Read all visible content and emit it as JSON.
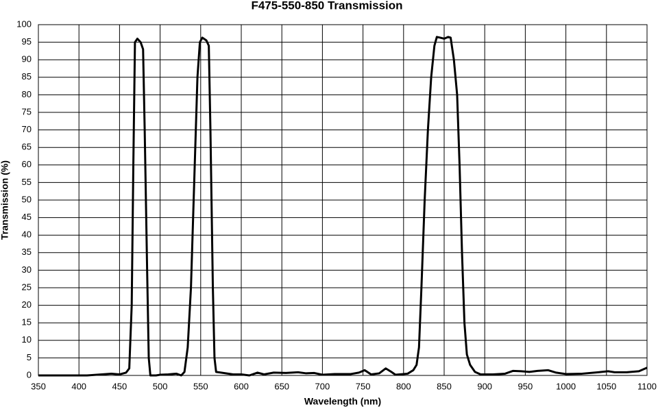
{
  "chart_data": {
    "type": "line",
    "title": "F475-550-850 Transmission",
    "x_label": "Wavelength (nm)",
    "y_label": "Transmission (%)",
    "x": [
      350,
      380,
      410,
      440,
      450,
      458,
      462,
      465,
      467,
      469,
      472,
      476,
      479,
      481,
      484,
      486,
      488,
      495,
      500,
      510,
      520,
      526,
      530,
      534,
      538,
      542,
      546,
      549,
      552,
      557,
      560,
      562,
      565,
      567,
      569,
      575,
      590,
      600,
      610,
      620,
      628,
      640,
      655,
      670,
      680,
      690,
      700,
      715,
      735,
      745,
      752,
      760,
      770,
      778,
      785,
      790,
      805,
      812,
      816,
      819,
      822,
      826,
      830,
      834,
      838,
      841,
      845,
      850,
      855,
      858,
      862,
      866,
      869,
      872,
      875,
      878,
      882,
      888,
      895,
      910,
      925,
      935,
      945,
      955,
      965,
      978,
      988,
      1000,
      1020,
      1040,
      1052,
      1060,
      1075,
      1090,
      1100
    ],
    "series": [
      {
        "name": "Transmission",
        "color": "#000000",
        "values": [
          0,
          0,
          0,
          0.5,
          0.3,
          0.8,
          2,
          20,
          60,
          95,
          96,
          95,
          93,
          70,
          30,
          5,
          0,
          0,
          0.2,
          0.3,
          0.5,
          0,
          1,
          8,
          25,
          55,
          85,
          95,
          96.3,
          95.5,
          94,
          70,
          25,
          5,
          1,
          0.8,
          0.3,
          0.3,
          0,
          0.8,
          0.3,
          0.8,
          0.7,
          0.9,
          0.6,
          0.7,
          0.2,
          0.4,
          0.4,
          0.8,
          1.5,
          0.3,
          0.6,
          2,
          1,
          0.2,
          0.5,
          1.5,
          3,
          8,
          25,
          50,
          70,
          85,
          94,
          96.5,
          96.3,
          96,
          96.5,
          96.3,
          90,
          80,
          60,
          35,
          15,
          6,
          3,
          1,
          0.3,
          0.3,
          0.5,
          1.3,
          1.2,
          1,
          1.3,
          1.5,
          0.8,
          0.4,
          0.5,
          0.9,
          1.2,
          0.9,
          0.9,
          1.2,
          2.2
        ]
      }
    ],
    "xlim": [
      350,
      1100
    ],
    "ylim": [
      0,
      100
    ],
    "xticks": [
      350,
      400,
      450,
      500,
      550,
      600,
      650,
      700,
      750,
      800,
      850,
      900,
      950,
      1000,
      1050,
      1100
    ],
    "yticks": [
      0,
      5,
      10,
      15,
      20,
      25,
      30,
      35,
      40,
      45,
      50,
      55,
      60,
      65,
      70,
      75,
      80,
      85,
      90,
      95,
      100
    ],
    "grid": true
  }
}
